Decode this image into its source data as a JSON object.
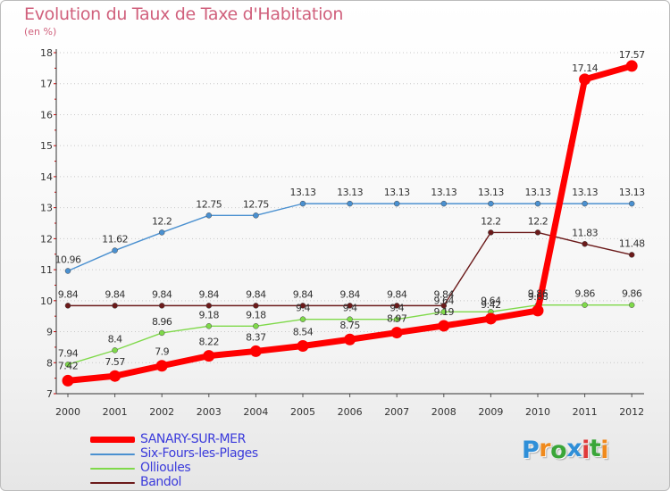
{
  "header": {
    "title": "Evolution du Taux de Taxe d'Habitation",
    "subtitle": "(en %)"
  },
  "logo": {
    "text": "Proxiti",
    "letter_colors": [
      "#2f8fd8",
      "#f08a1c",
      "#3aa639",
      "#2f8fd8",
      "#e03a3a",
      "#3aa639",
      "#f08a1c"
    ]
  },
  "chart_data": {
    "type": "line",
    "title": "Evolution du Taux de Taxe d'Habitation",
    "subtitle": "(en %)",
    "xlabel": "",
    "ylabel": "",
    "x": [
      "2000",
      "2001",
      "2002",
      "2003",
      "2004",
      "2005",
      "2006",
      "2007",
      "2008",
      "2009",
      "2010",
      "2011",
      "2012"
    ],
    "ylim": [
      7,
      18
    ],
    "yticks": [
      "7",
      "8",
      "9",
      "10",
      "11",
      "12",
      "13",
      "14",
      "15",
      "16",
      "17",
      "18"
    ],
    "grid": "horizontal dotted",
    "legend_position": "bottom-left",
    "series": [
      {
        "name": "SANARY-SUR-MER",
        "color": "#ff0000",
        "values": [
          7.42,
          7.57,
          7.9,
          8.22,
          8.37,
          8.54,
          8.75,
          8.97,
          9.19,
          9.42,
          9.68,
          17.14,
          17.57
        ],
        "labels": [
          "7.42",
          "7.57",
          "7.9",
          "8.22",
          "8.37",
          "8.54",
          "8.75",
          "8.97",
          "9.19",
          "9.42",
          "9.68",
          "17.14",
          "17.57"
        ]
      },
      {
        "name": "Six-Fours-les-Plages",
        "color": "#4a90d0",
        "values": [
          10.96,
          11.62,
          12.2,
          12.75,
          12.75,
          13.13,
          13.13,
          13.13,
          13.13,
          13.13,
          13.13,
          13.13,
          13.13
        ],
        "labels": [
          "10.96",
          "11.62",
          "12.2",
          "12.75",
          "12.75",
          "13.13",
          "13.13",
          "13.13",
          "13.13",
          "13.13",
          "13.13",
          "13.13",
          "13.13"
        ]
      },
      {
        "name": "Ollioules",
        "color": "#7fd94a",
        "values": [
          7.94,
          8.4,
          8.96,
          9.18,
          9.18,
          9.4,
          9.4,
          9.4,
          9.64,
          9.64,
          9.86,
          9.86,
          9.86
        ],
        "labels": [
          "7.94",
          "8.4",
          "8.96",
          "9.18",
          "9.18",
          "9.4",
          "9.4",
          "9.4",
          "9.64",
          "9.64",
          "9.86",
          "9.86",
          "9.86"
        ]
      },
      {
        "name": "Bandol",
        "color": "#6b1a1a",
        "values": [
          9.84,
          9.84,
          9.84,
          9.84,
          9.84,
          9.84,
          9.84,
          9.84,
          9.84,
          12.2,
          12.2,
          11.83,
          11.48
        ],
        "labels": [
          "9.84",
          "9.84",
          "9.84",
          "9.84",
          "9.84",
          "9.84",
          "9.84",
          "9.84",
          "9.84",
          "12.2",
          "12.2",
          "11.83",
          "11.48"
        ]
      }
    ]
  }
}
